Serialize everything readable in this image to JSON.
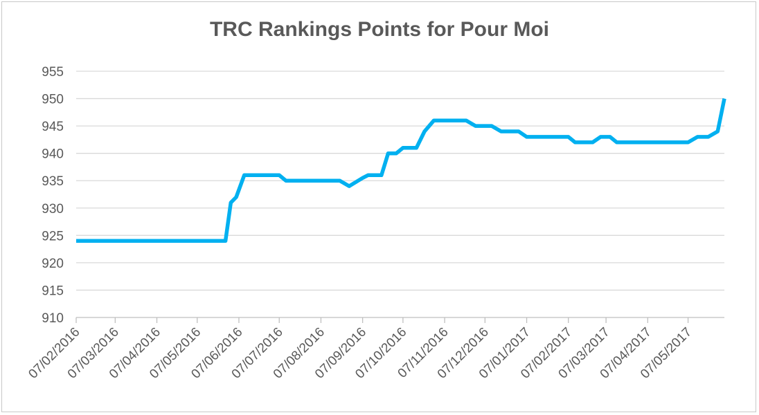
{
  "chart_data": {
    "type": "line",
    "title": "TRC Rankings Points for Pour Moi",
    "xlabel": "",
    "ylabel": "",
    "ylim": [
      910,
      955
    ],
    "yticks": [
      910,
      915,
      920,
      925,
      930,
      935,
      940,
      945,
      950,
      955
    ],
    "x_tick_labels": [
      "07/02/2016",
      "07/03/2016",
      "07/04/2016",
      "07/05/2016",
      "07/06/2016",
      "07/07/2016",
      "07/08/2016",
      "07/09/2016",
      "07/10/2016",
      "07/11/2016",
      "07/12/2016",
      "07/01/2017",
      "07/02/2017",
      "07/03/2017",
      "07/04/2017",
      "07/05/2017"
    ],
    "x_range": [
      "2016-02-07",
      "2017-06-03"
    ],
    "grid": true,
    "legend": "none",
    "series": [
      {
        "color": "#00b0f0",
        "points": [
          [
            "2016-02-07",
            924
          ],
          [
            "2016-03-07",
            924
          ],
          [
            "2016-04-07",
            924
          ],
          [
            "2016-05-07",
            924
          ],
          [
            "2016-05-28",
            924
          ],
          [
            "2016-06-01",
            931
          ],
          [
            "2016-06-05",
            932
          ],
          [
            "2016-06-11",
            936
          ],
          [
            "2016-07-07",
            936
          ],
          [
            "2016-07-12",
            935
          ],
          [
            "2016-08-07",
            935
          ],
          [
            "2016-08-21",
            935
          ],
          [
            "2016-08-28",
            934
          ],
          [
            "2016-09-07",
            935.5
          ],
          [
            "2016-09-11",
            936
          ],
          [
            "2016-09-21",
            936
          ],
          [
            "2016-09-26",
            940
          ],
          [
            "2016-10-02",
            940
          ],
          [
            "2016-10-07",
            941
          ],
          [
            "2016-10-17",
            941
          ],
          [
            "2016-10-23",
            944
          ],
          [
            "2016-10-30",
            946
          ],
          [
            "2016-11-07",
            946
          ],
          [
            "2016-11-23",
            946
          ],
          [
            "2016-11-30",
            945
          ],
          [
            "2016-12-12",
            945
          ],
          [
            "2016-12-19",
            944
          ],
          [
            "2017-01-01",
            944
          ],
          [
            "2017-01-07",
            943
          ],
          [
            "2017-02-07",
            943
          ],
          [
            "2017-02-12",
            942
          ],
          [
            "2017-02-25",
            942
          ],
          [
            "2017-03-03",
            943
          ],
          [
            "2017-03-10",
            943
          ],
          [
            "2017-03-15",
            942
          ],
          [
            "2017-04-07",
            942
          ],
          [
            "2017-04-28",
            942
          ],
          [
            "2017-05-07",
            942
          ],
          [
            "2017-05-14",
            943
          ],
          [
            "2017-05-22",
            943
          ],
          [
            "2017-05-29",
            944
          ],
          [
            "2017-06-03",
            950
          ]
        ]
      }
    ]
  }
}
